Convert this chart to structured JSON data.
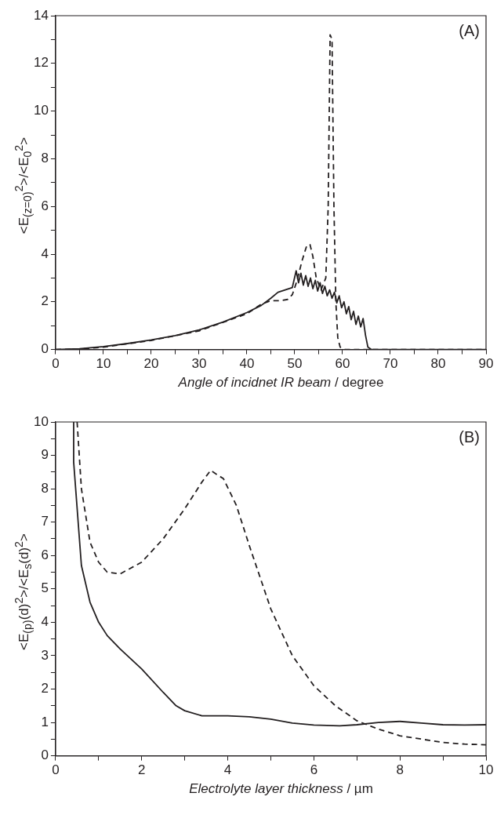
{
  "chart_data": [
    {
      "type": "line",
      "xlabel": "Angle of incidnet IR beam / degree",
      "ylabel": "<E$_{(z=0)}$$^{2}$>/<E$_{0}$$^{2}$>",
      "annotations": [
        "(A)"
      ],
      "xlim": [
        0,
        90
      ],
      "ylim": [
        0,
        14
      ],
      "xticks": [
        0,
        {
          "value": 5,
          "label": null
        },
        10,
        {
          "value": 15,
          "label": null
        },
        20,
        {
          "value": 25,
          "label": null
        },
        30,
        {
          "value": 35,
          "label": null
        },
        40,
        {
          "value": 45,
          "label": null
        },
        50,
        {
          "value": 55,
          "label": null
        },
        60,
        {
          "value": 65,
          "label": null
        },
        70,
        {
          "value": 75,
          "label": null
        },
        80,
        {
          "value": 85,
          "label": null
        },
        90
      ],
      "yticks": [
        0,
        {
          "value": 1,
          "label": null
        },
        2,
        {
          "value": 3,
          "label": null
        },
        4,
        {
          "value": 5,
          "label": null
        },
        6,
        {
          "value": 7,
          "label": null
        },
        8,
        {
          "value": 9,
          "label": null
        },
        10,
        {
          "value": 11,
          "label": null
        },
        12,
        {
          "value": 13,
          "label": null
        },
        14
      ],
      "series": [
        {
          "color": "#231f20",
          "line_style": "solid",
          "x": [
            0,
            5,
            10,
            15,
            20,
            25,
            30,
            35,
            40,
            43,
            45,
            46.5,
            48,
            49.5,
            50.3,
            50.8,
            51.3,
            51.8,
            52.3,
            52.8,
            53.3,
            53.8,
            54.3,
            54.8,
            55.3,
            55.8,
            56.3,
            56.8,
            57.3,
            57.8,
            58.3,
            58.8,
            59.3,
            59.8,
            60.3,
            60.8,
            61.3,
            61.8,
            62.3,
            62.8,
            63.3,
            63.8,
            64.3,
            64.8,
            65.3,
            66,
            90
          ],
          "values": [
            0,
            0.03,
            0.12,
            0.25,
            0.4,
            0.58,
            0.82,
            1.15,
            1.55,
            1.85,
            2.15,
            2.4,
            2.5,
            2.6,
            3.3,
            2.8,
            3.2,
            2.7,
            3.1,
            2.65,
            3.0,
            2.55,
            2.9,
            2.45,
            2.8,
            2.35,
            2.65,
            2.25,
            2.5,
            2.15,
            2.4,
            1.95,
            2.25,
            1.75,
            2.0,
            1.5,
            1.8,
            1.25,
            1.6,
            1.05,
            1.4,
            0.95,
            1.3,
            0.6,
            0.1,
            0,
            0
          ]
        },
        {
          "color": "#231f20",
          "line_style": "dashed",
          "x": [
            0,
            5,
            10,
            20,
            30,
            40,
            43,
            45,
            47,
            48.5,
            49.5,
            50.5,
            51.5,
            52.5,
            53.2,
            53.8,
            54.5,
            55.5,
            56.5,
            57,
            57.4,
            57.8,
            58.2,
            58.6,
            59,
            59.5,
            60.5,
            90
          ],
          "values": [
            0,
            0.02,
            0.1,
            0.38,
            0.78,
            1.5,
            1.9,
            2.05,
            2.05,
            2.1,
            2.3,
            2.9,
            3.7,
            4.35,
            4.4,
            3.9,
            3.0,
            2.5,
            3.0,
            6,
            13.2,
            13.0,
            6,
            2.0,
            0.5,
            0.1,
            0,
            0
          ]
        }
      ]
    },
    {
      "type": "line",
      "xlabel": "Electrolyte layer thickness / µm",
      "ylabel": "<E$_{(p)}$(d)$^{2}$>/<E$_{s}$(d)$^{2}$>",
      "annotations": [
        "(B)"
      ],
      "xlim": [
        0,
        10
      ],
      "ylim": [
        0,
        10
      ],
      "xticks": [
        0,
        {
          "value": 1,
          "label": null
        },
        2,
        {
          "value": 3,
          "label": null
        },
        4,
        {
          "value": 5,
          "label": null
        },
        6,
        {
          "value": 7,
          "label": null
        },
        8,
        {
          "value": 9,
          "label": null
        },
        10
      ],
      "yticks": [
        0,
        {
          "value": 0.5,
          "label": null
        },
        1,
        {
          "value": 1.5,
          "label": null
        },
        2,
        {
          "value": 2.5,
          "label": null
        },
        3,
        {
          "value": 3.5,
          "label": null
        },
        4,
        {
          "value": 4.5,
          "label": null
        },
        5,
        {
          "value": 5.5,
          "label": null
        },
        6,
        {
          "value": 6.5,
          "label": null
        },
        7,
        {
          "value": 7.5,
          "label": null
        },
        8,
        {
          "value": 8.5,
          "label": null
        },
        9,
        {
          "value": 9.5,
          "label": null
        },
        10
      ],
      "series": [
        {
          "color": "#231f20",
          "line_style": "solid",
          "x": [
            0.42,
            0.42,
            0.6,
            0.8,
            1.0,
            1.2,
            1.5,
            2,
            2.5,
            2.8,
            3,
            3.4,
            4,
            4.5,
            5,
            5.5,
            6,
            6.6,
            7,
            7.5,
            8,
            8.5,
            9,
            9.5,
            10
          ],
          "values": [
            10,
            8.8,
            5.7,
            4.6,
            4.0,
            3.6,
            3.2,
            2.6,
            1.9,
            1.5,
            1.35,
            1.2,
            1.2,
            1.17,
            1.1,
            0.98,
            0.92,
            0.9,
            0.93,
            1.0,
            1.03,
            0.98,
            0.93,
            0.92,
            0.93
          ]
        },
        {
          "color": "#231f20",
          "line_style": "dashed",
          "x": [
            0.5,
            0.6,
            0.8,
            1,
            1.2,
            1.5,
            2,
            2.5,
            3,
            3.4,
            3.6,
            3.9,
            4.2,
            4.5,
            5,
            5.5,
            6,
            6.5,
            7,
            7.5,
            8,
            8.5,
            9,
            9.5,
            10
          ],
          "values": [
            10,
            8,
            6.4,
            5.8,
            5.5,
            5.45,
            5.8,
            6.5,
            7.4,
            8.2,
            8.55,
            8.3,
            7.5,
            6.3,
            4.4,
            3.0,
            2.1,
            1.5,
            1.05,
            0.8,
            0.6,
            0.5,
            0.4,
            0.35,
            0.33
          ]
        }
      ]
    }
  ]
}
